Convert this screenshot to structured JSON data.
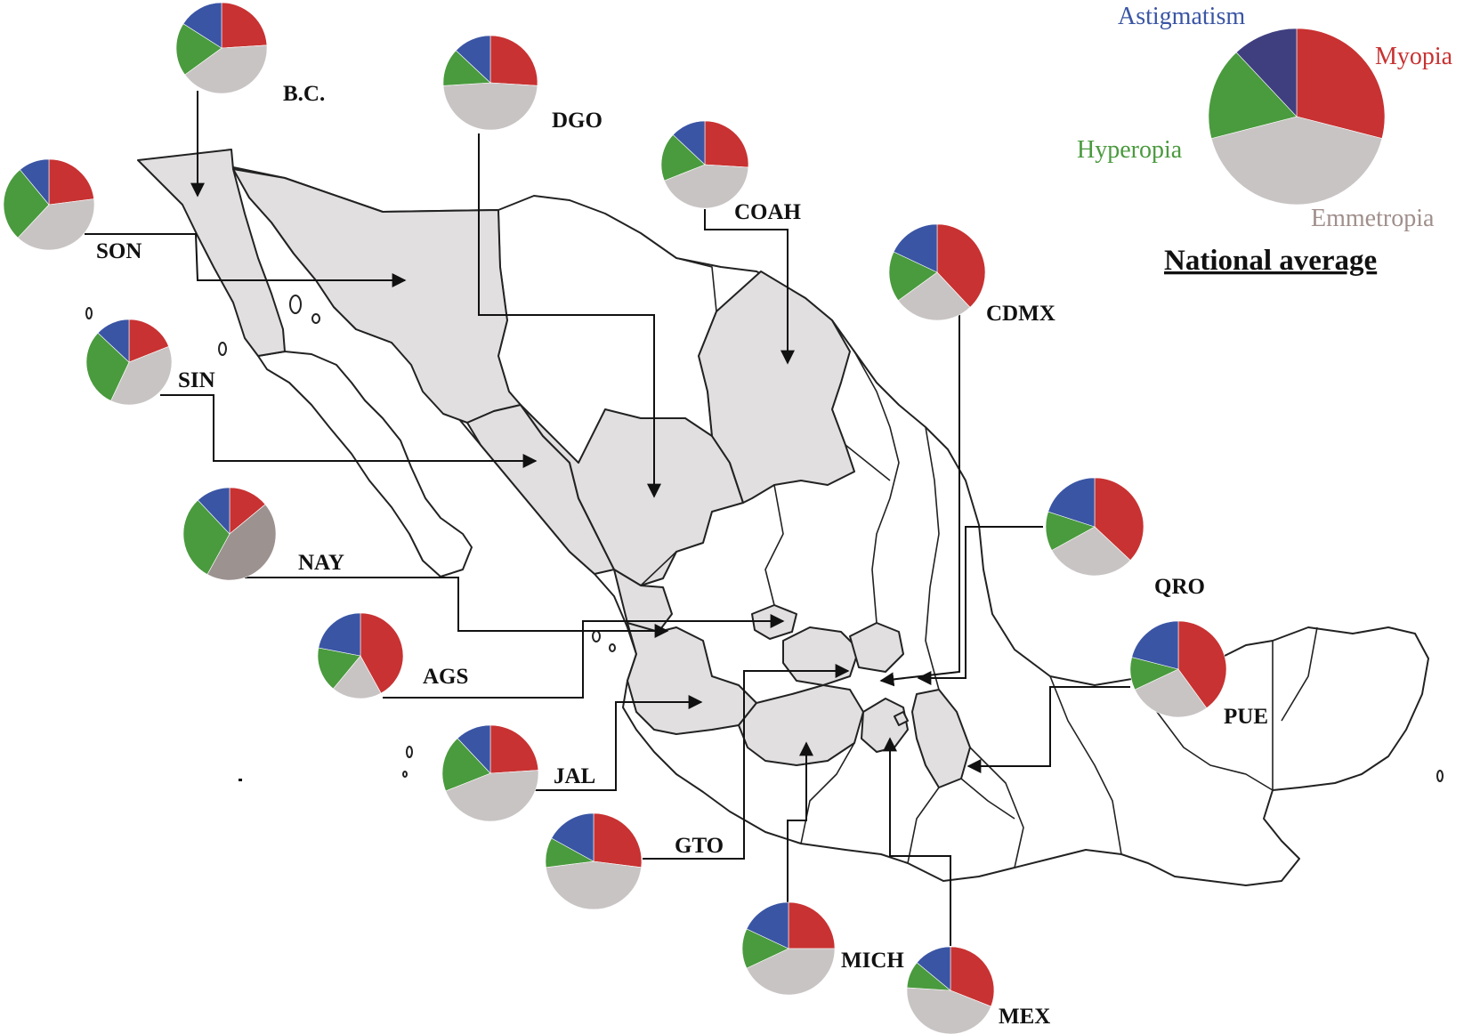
{
  "colors": {
    "myopia": "#c83232",
    "emmetropia": "#c9c4c4",
    "hyperopia": "#4a9a3e",
    "astigmatism": "#3a55a4",
    "astigmatism_national": "#3f3f80"
  },
  "legend": {
    "title": "National average",
    "labels": {
      "astigmatism": "Astigmatism",
      "myopia": "Myopia",
      "hyperopia": "Hyperopia",
      "emmetropia": "Emmetropia"
    }
  },
  "chart_data": {
    "type": "pie",
    "categories": [
      "Myopia",
      "Emmetropia",
      "Hyperopia",
      "Astigmatism"
    ],
    "national": {
      "name": "National average",
      "values": [
        29,
        42,
        17,
        12
      ]
    },
    "states": [
      {
        "id": "bc",
        "label": "B.C.",
        "values": [
          24,
          41,
          19,
          16
        ]
      },
      {
        "id": "dgo",
        "label": "DGO",
        "values": [
          26,
          48,
          13,
          13
        ]
      },
      {
        "id": "coah",
        "label": "COAH",
        "values": [
          26,
          43,
          18,
          13
        ]
      },
      {
        "id": "son",
        "label": "SON",
        "values": [
          23,
          39,
          27,
          11
        ]
      },
      {
        "id": "cdmx",
        "label": "CDMX",
        "values": [
          38,
          27,
          17,
          18
        ]
      },
      {
        "id": "sin",
        "label": "SIN",
        "values": [
          19,
          38,
          30,
          13
        ]
      },
      {
        "id": "nay",
        "label": "NAY",
        "values": [
          14,
          44,
          30,
          12
        ],
        "emmetropia_color": "#9c9290"
      },
      {
        "id": "qro",
        "label": "QRO",
        "values": [
          37,
          30,
          13,
          20
        ]
      },
      {
        "id": "ags",
        "label": "AGS",
        "values": [
          42,
          19,
          17,
          22
        ]
      },
      {
        "id": "pue",
        "label": "PUE",
        "values": [
          40,
          28,
          11,
          21
        ]
      },
      {
        "id": "jal",
        "label": "JAL",
        "values": [
          24,
          45,
          19,
          12
        ]
      },
      {
        "id": "gto",
        "label": "GTO",
        "values": [
          27,
          46,
          10,
          17
        ]
      },
      {
        "id": "mich",
        "label": "MICH",
        "values": [
          25,
          43,
          14,
          18
        ]
      },
      {
        "id": "mex",
        "label": "MEX",
        "values": [
          31,
          45,
          10,
          14
        ]
      }
    ]
  }
}
